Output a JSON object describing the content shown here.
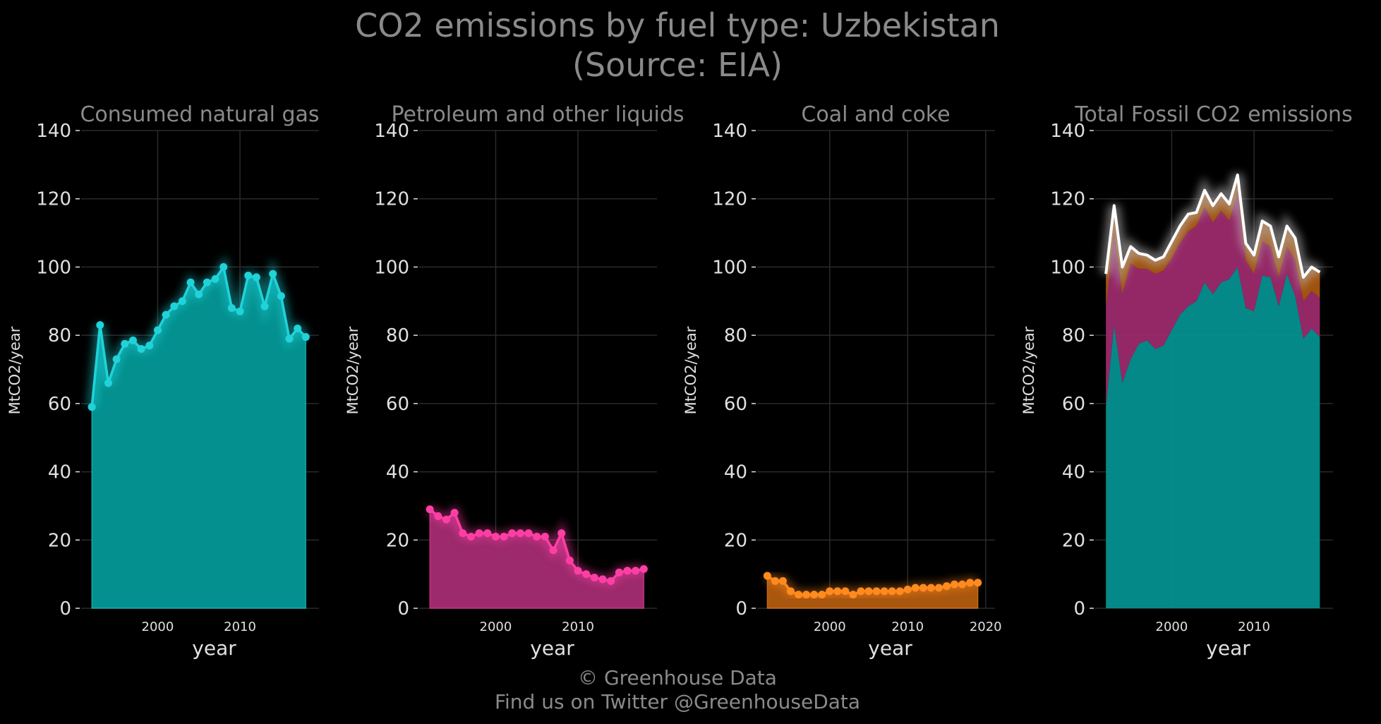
{
  "title": {
    "line1": "CO2 emissions by fuel type: Uzbekistan",
    "line2": "(Source: EIA)"
  },
  "footer": {
    "line1": "© Greenhouse Data",
    "line2": "Find us on Twitter @GreenhouseData"
  },
  "colors": {
    "gas": "#1fd3d9",
    "gas_fill": "#04908f",
    "petroleum": "#ff3ea5",
    "petroleum_fill": "#9c2a6c",
    "coal": "#ff8a1e",
    "coal_fill": "#a9560f",
    "total_line": "#ffffff",
    "grid": "#2a2a2a",
    "tick_text": "#e0e0e0",
    "panel_title": "#8a8a8a"
  },
  "chart_data": [
    {
      "type": "area",
      "title": "Consumed natural gas",
      "xlabel": "year",
      "ylabel": "MtCO2/year",
      "ylim": [
        0,
        140
      ],
      "yticks": [
        0,
        20,
        40,
        60,
        80,
        100,
        120,
        140
      ],
      "xticks": [
        2000,
        2010
      ],
      "xlim": [
        1990.7,
        2019.6
      ],
      "grid": true,
      "x": [
        1992,
        1993,
        1994,
        1995,
        1996,
        1997,
        1998,
        1999,
        2000,
        2001,
        2002,
        2003,
        2004,
        2005,
        2006,
        2007,
        2008,
        2009,
        2010,
        2011,
        2012,
        2013,
        2014,
        2015,
        2016,
        2017,
        2018
      ],
      "values": [
        59,
        83,
        66,
        73,
        77.5,
        78.5,
        76,
        77,
        81.5,
        86,
        88.5,
        90,
        95.5,
        92,
        95.5,
        96.5,
        100,
        88,
        87,
        97.5,
        97,
        88.5,
        98,
        91.5,
        79,
        82,
        79.5
      ]
    },
    {
      "type": "area",
      "title": "Petroleum and other liquids",
      "xlabel": "year",
      "ylabel": "MtCO2/year",
      "ylim": [
        0,
        140
      ],
      "yticks": [
        0,
        20,
        40,
        60,
        80,
        100,
        120,
        140
      ],
      "xticks": [
        2000,
        2010
      ],
      "xlim": [
        1990.7,
        2019.6
      ],
      "grid": true,
      "x": [
        1992,
        1993,
        1994,
        1995,
        1996,
        1997,
        1998,
        1999,
        2000,
        2001,
        2002,
        2003,
        2004,
        2005,
        2006,
        2007,
        2008,
        2009,
        2010,
        2011,
        2012,
        2013,
        2014,
        2015,
        2016,
        2017,
        2018
      ],
      "values": [
        29,
        27,
        26,
        28,
        22,
        21,
        22,
        22,
        21,
        21,
        22,
        22,
        22,
        21,
        21,
        17,
        22,
        14,
        11,
        10,
        9,
        8.5,
        8,
        10.5,
        11,
        11,
        11.5
      ]
    },
    {
      "type": "area",
      "title": "Coal and coke",
      "xlabel": "year",
      "ylabel": "MtCO2/year",
      "ylim": [
        0,
        140
      ],
      "yticks": [
        0,
        20,
        40,
        60,
        80,
        100,
        120,
        140
      ],
      "xticks": [
        2000,
        2010,
        2020
      ],
      "xlim": [
        1990.7,
        2021.2
      ],
      "grid": true,
      "x": [
        1992,
        1993,
        1994,
        1995,
        1996,
        1997,
        1998,
        1999,
        2000,
        2001,
        2002,
        2003,
        2004,
        2005,
        2006,
        2007,
        2008,
        2009,
        2010,
        2011,
        2012,
        2013,
        2014,
        2015,
        2016,
        2017,
        2018,
        2019
      ],
      "values": [
        9.5,
        8,
        8,
        5,
        4,
        4,
        4,
        4,
        5,
        5,
        5,
        4,
        5,
        5,
        5,
        5,
        5,
        5,
        5.5,
        6,
        6,
        6,
        6,
        6.5,
        7,
        7,
        7.5,
        7.5
      ]
    },
    {
      "type": "area",
      "title": "Total Fossil CO2 emissions",
      "xlabel": "year",
      "ylabel": "MtCO2/year",
      "ylim": [
        0,
        140
      ],
      "yticks": [
        0,
        20,
        40,
        60,
        80,
        100,
        120,
        140
      ],
      "xticks": [
        2000,
        2010
      ],
      "xlim": [
        1990.7,
        2019.6
      ],
      "grid": true,
      "x": [
        1992,
        1993,
        1994,
        1995,
        1996,
        1997,
        1998,
        1999,
        2000,
        2001,
        2002,
        2003,
        2004,
        2005,
        2006,
        2007,
        2008,
        2009,
        2010,
        2011,
        2012,
        2013,
        2014,
        2015,
        2016,
        2017,
        2018
      ],
      "series": [
        {
          "values": [
            59,
            83,
            66,
            73,
            77.5,
            78.5,
            76,
            77,
            81.5,
            86,
            88.5,
            90,
            95.5,
            92,
            95.5,
            96.5,
            100,
            88,
            87,
            97.5,
            97,
            88.5,
            98,
            91.5,
            79,
            82,
            79.5
          ]
        },
        {
          "values": [
            29,
            27,
            26,
            28,
            22,
            21,
            22,
            22,
            21,
            21,
            22,
            22,
            22,
            21,
            21,
            17,
            22,
            14,
            11,
            10,
            9,
            8.5,
            8,
            10.5,
            11,
            11,
            11.5
          ]
        },
        {
          "values": [
            9.5,
            8,
            8,
            5,
            4,
            4,
            4,
            4,
            5,
            5,
            5,
            4,
            5,
            5,
            5,
            5,
            5,
            5,
            5.5,
            6,
            6,
            6,
            6,
            6.5,
            7,
            7,
            7.5
          ]
        }
      ],
      "total": [
        98,
        118,
        100,
        106,
        104,
        103.5,
        102,
        103,
        107.5,
        112,
        115.5,
        116,
        122.5,
        118,
        121.5,
        118.5,
        127,
        107,
        103.5,
        113.5,
        112,
        103,
        112,
        108.5,
        97,
        100,
        98.5
      ]
    }
  ]
}
